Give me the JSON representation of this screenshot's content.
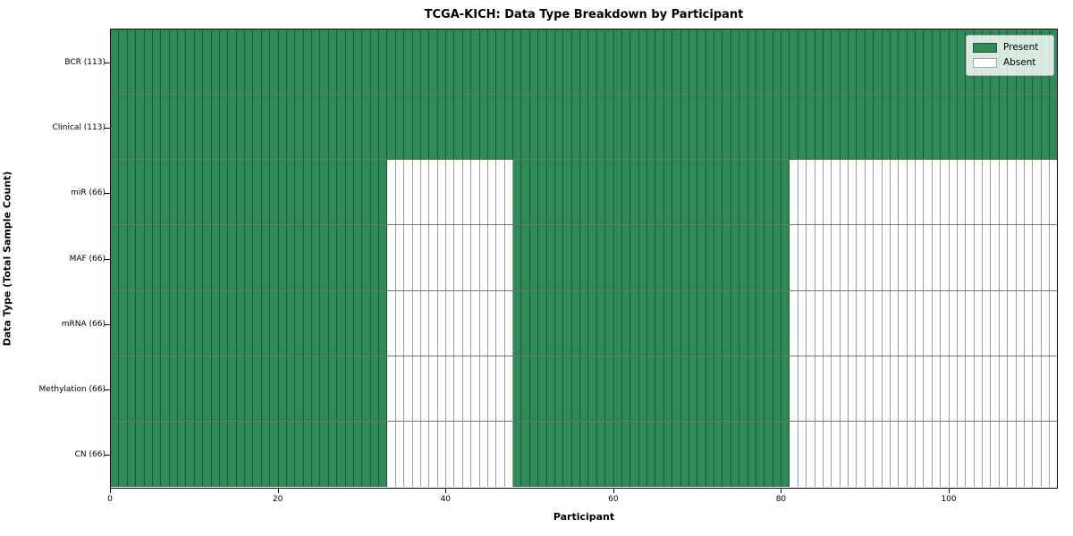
{
  "title": "TCGA-KICH: Data Type Breakdown by Participant",
  "colors": {
    "present": "#2e8b57",
    "absent": "#ffffff",
    "cell_edge": "rgba(0,0,0,0.38)",
    "row_edge": "rgba(0,0,0,0.55)",
    "spine": "#000000"
  },
  "chart_data": {
    "type": "heatmap",
    "title": "TCGA-KICH: Data Type Breakdown by Participant",
    "xlabel": "Participant",
    "ylabel": "Data Type (Total Sample Count)",
    "x_range": [
      0,
      113
    ],
    "x_ticks": [
      0,
      20,
      40,
      60,
      80,
      100
    ],
    "n_participants": 113,
    "grid": "cell-borders",
    "legend": {
      "position": "upper right",
      "entries": [
        {
          "label": "Present",
          "color_key": "present"
        },
        {
          "label": "Absent",
          "color_key": "absent"
        }
      ]
    },
    "rows": [
      {
        "label": "BCR (113)",
        "total_samples": 113,
        "present_ranges": [
          [
            0,
            113
          ]
        ]
      },
      {
        "label": "Clinical (113)",
        "total_samples": 113,
        "present_ranges": [
          [
            0,
            113
          ]
        ]
      },
      {
        "label": "miR (66)",
        "total_samples": 66,
        "present_ranges": [
          [
            0,
            33
          ],
          [
            48,
            81
          ]
        ]
      },
      {
        "label": "MAF (66)",
        "total_samples": 66,
        "present_ranges": [
          [
            0,
            33
          ],
          [
            48,
            81
          ]
        ]
      },
      {
        "label": "mRNA (66)",
        "total_samples": 66,
        "present_ranges": [
          [
            0,
            33
          ],
          [
            48,
            81
          ]
        ]
      },
      {
        "label": "Methylation (66)",
        "total_samples": 66,
        "present_ranges": [
          [
            0,
            33
          ],
          [
            48,
            81
          ]
        ]
      },
      {
        "label": "CN (66)",
        "total_samples": 66,
        "present_ranges": [
          [
            0,
            33
          ],
          [
            48,
            81
          ]
        ]
      }
    ]
  }
}
